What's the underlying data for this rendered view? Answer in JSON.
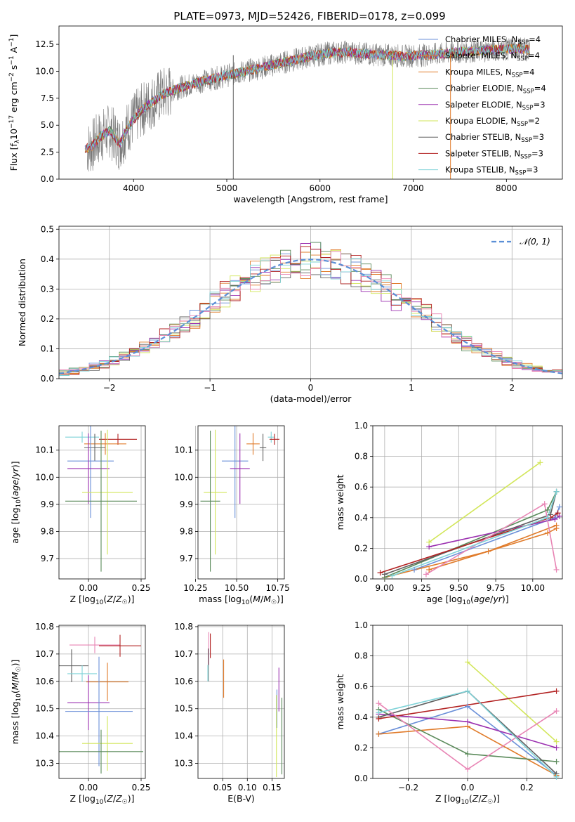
{
  "figure": {
    "title": "PLATE=0973, MJD=52426, FIBERID=0178, z=0.099"
  },
  "colors": {
    "chabrier_miles": "#6a8fd8",
    "salpeter_miles": "#e07b2a",
    "kroupa_miles": "#e07b2a",
    "chabrier_elodie": "#5a8a5a",
    "salpeter_elodie": "#9b30b0",
    "kroupa_elodie": "#d2e65a",
    "chabrier_stelib": "#606060",
    "salpeter_stelib": "#b22222",
    "kroupa_stelib": "#7fd3d8",
    "gauss": "#5b8fd6",
    "pink": "#e884b4"
  },
  "chart_data": [
    {
      "id": "spectrum",
      "type": "line",
      "xlabel": "wavelength [Angstrom, rest frame]",
      "ylabel": "Flux [f_λ 10^-17 erg cm^-2 s^-1 A^-1]",
      "xlim": [
        3200,
        8600
      ],
      "ylim": [
        0,
        14.2
      ],
      "xticks": [
        4000,
        5000,
        6000,
        7000,
        8000
      ],
      "yticks": [
        0.0,
        2.5,
        5.0,
        7.5,
        10.0,
        12.5
      ],
      "legend_position": "upper-right",
      "continuum": {
        "x": [
          3480,
          3550,
          3650,
          3750,
          3850,
          3950,
          4100,
          4300,
          4500,
          4700,
          4900,
          5100,
          5300,
          5500,
          5700,
          5900,
          6100,
          6300,
          6500,
          6700,
          6900,
          7100,
          7300,
          7500,
          7700,
          7900,
          8100,
          8250
        ],
        "y": [
          2.8,
          3.0,
          4.0,
          4.5,
          3.3,
          5.0,
          6.5,
          7.8,
          8.5,
          9.0,
          9.4,
          9.8,
          10.2,
          10.6,
          11.0,
          11.4,
          11.7,
          11.8,
          11.6,
          11.5,
          11.4,
          11.5,
          11.6,
          11.8,
          11.9,
          12.0,
          12.1,
          12.0
        ]
      },
      "series": [
        {
          "name": "Chabrier MILES, N_SSP=4",
          "color_key": "chabrier_miles"
        },
        {
          "name": "Salpeter MILES, N_SSP=4",
          "color_key": "salpeter_miles"
        },
        {
          "name": "Kroupa MILES, N_SSP=4",
          "color_key": "kroupa_miles"
        },
        {
          "name": "Chabrier ELODIE, N_SSP=4",
          "color_key": "chabrier_elodie"
        },
        {
          "name": "Salpeter ELODIE, N_SSP=3",
          "color_key": "salpeter_elodie"
        },
        {
          "name": "Kroupa ELODIE, N_SSP=2",
          "color_key": "kroupa_elodie"
        },
        {
          "name": "Chabrier STELIB, N_SSP=3",
          "color_key": "chabrier_stelib"
        },
        {
          "name": "Salpeter STELIB, N_SSP=3",
          "color_key": "salpeter_stelib"
        },
        {
          "name": "Kroupa STELIB, N_SSP=3",
          "color_key": "kroupa_stelib"
        }
      ],
      "drops": [
        {
          "x": 5070,
          "color_key": "chabrier_stelib"
        },
        {
          "x": 6780,
          "color_key": "kroupa_elodie"
        },
        {
          "x": 7400,
          "color_key": "salpeter_miles"
        }
      ]
    },
    {
      "id": "residuals",
      "type": "histogram",
      "xlabel": "(data-model)/error",
      "ylabel": "Normed distribution",
      "xlim": [
        -2.5,
        2.5
      ],
      "ylim": [
        0,
        0.51
      ],
      "xticks": [
        -2,
        -1,
        0,
        1,
        2
      ],
      "yticks": [
        0.0,
        0.1,
        0.2,
        0.3,
        0.4,
        0.5
      ],
      "legend": "N(0,1)",
      "legend_position": "upper-right",
      "bin_width": 0.1
    },
    {
      "id": "age_vs_Z",
      "type": "errorbar",
      "xlabel": "Z [log10(Z/Z☉)]",
      "ylabel": "age [log10(age/yr)]",
      "xlim": [
        -0.14,
        0.27
      ],
      "ylim": [
        9.625,
        10.19
      ],
      "xticks": [
        0.0,
        0.25
      ],
      "yticks": [
        9.7,
        9.8,
        9.9,
        10.0,
        10.1
      ],
      "points": [
        {
          "color_key": "kroupa_stelib",
          "x": -0.03,
          "y": 10.148,
          "xerr": 0.08,
          "yerr": 0.02
        },
        {
          "color_key": "salpeter_stelib",
          "x": 0.14,
          "y": 10.14,
          "xerr": 0.09,
          "yerr": 0.02
        },
        {
          "color_key": "salpeter_miles",
          "x": 0.08,
          "y": 10.123,
          "xerr": 0.1,
          "yerr": 0.04
        },
        {
          "color_key": "chabrier_stelib",
          "x": 0.03,
          "y": 10.11,
          "xerr": 0.05,
          "yerr": 0.05
        },
        {
          "color_key": "chabrier_miles",
          "x": 0.01,
          "y": 10.06,
          "xerr": 0.11,
          "yerr": 0.21
        },
        {
          "color_key": "salpeter_elodie",
          "x": 0.0,
          "y": 10.032,
          "xerr": 0.1,
          "yerr": 0.13
        },
        {
          "color_key": "kroupa_elodie",
          "x": 0.09,
          "y": 9.945,
          "xerr": 0.12,
          "yerr": 0.23
        },
        {
          "color_key": "chabrier_elodie",
          "x": 0.06,
          "y": 9.912,
          "xerr": 0.17,
          "yerr": 0.26
        }
      ]
    },
    {
      "id": "age_vs_mass",
      "type": "errorbar",
      "xlabel": "mass [log10(M/M☉)]",
      "ylabel": "",
      "xlim": [
        10.265,
        10.79
      ],
      "ylim": [
        9.625,
        10.19
      ],
      "xticks": [
        10.25,
        10.5,
        10.75
      ],
      "yticks": [
        9.7,
        9.8,
        9.9,
        10.0,
        10.1
      ],
      "points": [
        {
          "color_key": "kroupa_stelib",
          "x": 10.71,
          "y": 10.148,
          "xerr": 0.02,
          "yerr": 0.02
        },
        {
          "color_key": "salpeter_stelib",
          "x": 10.73,
          "y": 10.14,
          "xerr": 0.03,
          "yerr": 0.02
        },
        {
          "color_key": "salpeter_miles",
          "x": 10.6,
          "y": 10.123,
          "xerr": 0.04,
          "yerr": 0.04
        },
        {
          "color_key": "chabrier_stelib",
          "x": 10.66,
          "y": 10.11,
          "xerr": 0.02,
          "yerr": 0.05
        },
        {
          "color_key": "chabrier_miles",
          "x": 10.49,
          "y": 10.06,
          "xerr": 0.08,
          "yerr": 0.21
        },
        {
          "color_key": "salpeter_elodie",
          "x": 10.52,
          "y": 10.032,
          "xerr": 0.06,
          "yerr": 0.13
        },
        {
          "color_key": "kroupa_elodie",
          "x": 10.37,
          "y": 9.945,
          "xerr": 0.07,
          "yerr": 0.23
        },
        {
          "color_key": "chabrier_elodie",
          "x": 10.34,
          "y": 9.912,
          "xerr": 0.06,
          "yerr": 0.26
        }
      ]
    },
    {
      "id": "weight_vs_age",
      "type": "line",
      "xlabel": "age [log10(age/yr)]",
      "ylabel": "mass weight",
      "xlim": [
        8.92,
        10.2
      ],
      "ylim": [
        0,
        1.0
      ],
      "xticks": [
        9.0,
        9.25,
        9.5,
        9.75,
        10.0
      ],
      "yticks": [
        0.0,
        0.2,
        0.4,
        0.6,
        0.8,
        1.0
      ],
      "series": [
        {
          "color_key": "chabrier_miles",
          "x": [
            9.2,
            10.15,
            10.18
          ],
          "y": [
            0.06,
            0.4,
            0.47
          ]
        },
        {
          "color_key": "salpeter_miles",
          "x": [
            9.3,
            10.1,
            10.16
          ],
          "y": [
            0.06,
            0.3,
            0.33
          ]
        },
        {
          "color_key": "kroupa_miles",
          "x": [
            9.0,
            9.7,
            10.16
          ],
          "y": [
            0.01,
            0.18,
            0.35
          ]
        },
        {
          "color_key": "chabrier_elodie",
          "x": [
            9.0,
            10.1,
            10.16
          ],
          "y": [
            0.01,
            0.45,
            0.57
          ]
        },
        {
          "color_key": "salpeter_elodie",
          "x": [
            9.3,
            10.15,
            10.18
          ],
          "y": [
            0.21,
            0.39,
            0.41
          ]
        },
        {
          "color_key": "kroupa_elodie",
          "x": [
            9.3,
            10.05
          ],
          "y": [
            0.24,
            0.76
          ]
        },
        {
          "color_key": "chabrier_stelib",
          "x": [
            9.0,
            10.12,
            10.16
          ],
          "y": [
            0.03,
            0.42,
            0.57
          ]
        },
        {
          "color_key": "salpeter_stelib",
          "x": [
            8.97,
            10.12,
            10.17
          ],
          "y": [
            0.04,
            0.4,
            0.43
          ]
        },
        {
          "color_key": "pink",
          "x": [
            9.28,
            10.08,
            10.16
          ],
          "y": [
            0.03,
            0.49,
            0.06
          ]
        },
        {
          "color_key": "kroupa_stelib",
          "x": [
            9.05,
            10.1,
            10.16
          ],
          "y": [
            0.02,
            0.4,
            0.57
          ]
        }
      ]
    },
    {
      "id": "mass_vs_Z",
      "type": "errorbar",
      "xlabel": "Z [log10(Z/Z☉)]",
      "ylabel": "mass [log10(M/M☉)]",
      "xlim": [
        -0.14,
        0.27
      ],
      "ylim": [
        10.245,
        10.805
      ],
      "xticks": [
        0.0,
        0.25
      ],
      "yticks": [
        10.3,
        10.4,
        10.5,
        10.6,
        10.7,
        10.8
      ],
      "points": [
        {
          "color_key": "pink",
          "x": 0.03,
          "y": 10.733,
          "xerr": 0.12,
          "yerr": 0.03
        },
        {
          "color_key": "salpeter_stelib",
          "x": 0.15,
          "y": 10.73,
          "xerr": 0.1,
          "yerr": 0.04
        },
        {
          "color_key": "chabrier_stelib",
          "x": -0.08,
          "y": 10.657,
          "xerr": 0.08,
          "yerr": 0.06
        },
        {
          "color_key": "kroupa_stelib",
          "x": -0.03,
          "y": 10.628,
          "xerr": 0.07,
          "yerr": 0.03
        },
        {
          "color_key": "salpeter_miles",
          "x": 0.09,
          "y": 10.598,
          "xerr": 0.1,
          "yerr": 0.07
        },
        {
          "color_key": "salpeter_elodie",
          "x": 0.0,
          "y": 10.522,
          "xerr": 0.1,
          "yerr": 0.1
        },
        {
          "color_key": "chabrier_miles",
          "x": 0.05,
          "y": 10.49,
          "xerr": 0.16,
          "yerr": 0.2
        },
        {
          "color_key": "kroupa_elodie",
          "x": 0.09,
          "y": 10.373,
          "xerr": 0.12,
          "yerr": 0.1
        },
        {
          "color_key": "chabrier_elodie",
          "x": 0.06,
          "y": 10.343,
          "xerr": 0.2,
          "yerr": 0.08
        }
      ]
    },
    {
      "id": "mass_vs_ebv",
      "type": "errorbar",
      "xlabel": "E(B-V)",
      "ylabel": "",
      "xlim": [
        0.0,
        0.175
      ],
      "ylim": [
        10.245,
        10.805
      ],
      "xticks": [
        0.05,
        0.1,
        0.15
      ],
      "yticks": [
        10.3,
        10.4,
        10.5,
        10.6,
        10.7,
        10.8
      ],
      "points": [
        {
          "color_key": "salpeter_stelib",
          "x": 0.025,
          "y": 10.73,
          "xerr": 0.0,
          "yerr": 0.045
        },
        {
          "color_key": "pink",
          "x": 0.022,
          "y": 10.72,
          "xerr": 0.0,
          "yerr": 0.06
        },
        {
          "color_key": "chabrier_stelib",
          "x": 0.021,
          "y": 10.66,
          "xerr": 0.0,
          "yerr": 0.06
        },
        {
          "color_key": "kroupa_stelib",
          "x": 0.02,
          "y": 10.63,
          "xerr": 0.0,
          "yerr": 0.03
        },
        {
          "color_key": "salpeter_miles",
          "x": 0.052,
          "y": 10.61,
          "xerr": 0.0,
          "yerr": 0.07
        },
        {
          "color_key": "salpeter_elodie",
          "x": 0.164,
          "y": 10.57,
          "xerr": 0.0,
          "yerr": 0.08
        },
        {
          "color_key": "chabrier_miles",
          "x": 0.16,
          "y": 10.5,
          "xerr": 0.0,
          "yerr": 0.07
        },
        {
          "color_key": "kroupa_elodie",
          "x": 0.159,
          "y": 10.4,
          "xerr": 0.0,
          "yerr": 0.15
        },
        {
          "color_key": "chabrier_elodie",
          "x": 0.17,
          "y": 10.4,
          "xerr": 0.0,
          "yerr": 0.14
        }
      ]
    },
    {
      "id": "weight_vs_Z",
      "type": "line",
      "xlabel": "Z [log10(Z/Z☉)]",
      "ylabel": "mass weight",
      "xlim": [
        -0.32,
        0.32
      ],
      "ylim": [
        0,
        1.0
      ],
      "xticks": [
        -0.2,
        0.0,
        0.2
      ],
      "yticks": [
        0.0,
        0.2,
        0.4,
        0.6,
        0.8,
        1.0
      ],
      "series": [
        {
          "color_key": "chabrier_miles",
          "x": [
            -0.3,
            0.0,
            0.3
          ],
          "y": [
            0.29,
            0.47,
            0.02
          ]
        },
        {
          "color_key": "salpeter_miles",
          "x": [
            -0.3,
            0.0,
            0.3
          ],
          "y": [
            0.29,
            0.34,
            0.02
          ]
        },
        {
          "color_key": "chabrier_elodie",
          "x": [
            -0.3,
            0.0,
            0.3
          ],
          "y": [
            0.45,
            0.16,
            0.11
          ]
        },
        {
          "color_key": "salpeter_elodie",
          "x": [
            -0.3,
            0.0,
            0.3
          ],
          "y": [
            0.42,
            0.37,
            0.2
          ]
        },
        {
          "color_key": "kroupa_elodie",
          "x": [
            0.0,
            0.3
          ],
          "y": [
            0.76,
            0.24
          ]
        },
        {
          "color_key": "chabrier_stelib",
          "x": [
            -0.3,
            0.0,
            0.3
          ],
          "y": [
            0.4,
            0.57,
            0.03
          ]
        },
        {
          "color_key": "salpeter_stelib",
          "x": [
            -0.3,
            0.3
          ],
          "y": [
            0.39,
            0.57
          ]
        },
        {
          "color_key": "pink",
          "x": [
            -0.3,
            0.0,
            0.3
          ],
          "y": [
            0.49,
            0.06,
            0.44
          ]
        },
        {
          "color_key": "kroupa_stelib",
          "x": [
            -0.3,
            0.0,
            0.3
          ],
          "y": [
            0.43,
            0.57,
            0.01
          ]
        }
      ]
    }
  ]
}
